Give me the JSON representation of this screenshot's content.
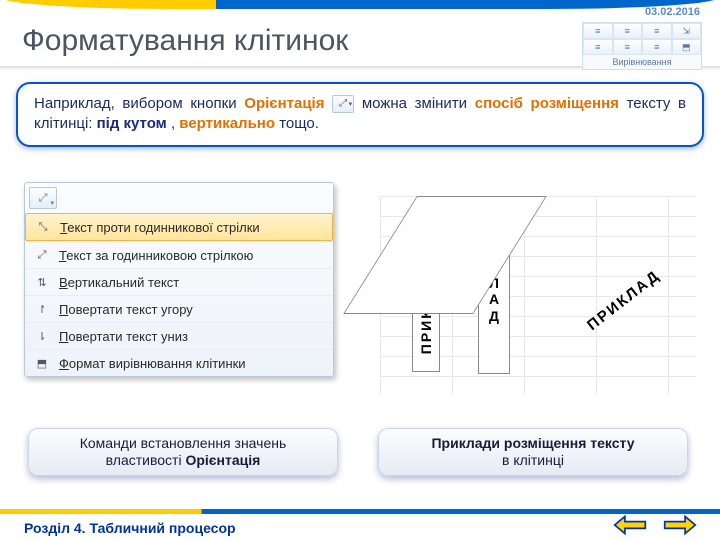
{
  "date": "03.02.2016",
  "title": "Форматування клітинок",
  "ribbon": {
    "label": "Вирівнювання",
    "icons": [
      "≡",
      "≡",
      "≡",
      "⇲",
      "≡",
      "≡",
      "≡",
      "⬒"
    ]
  },
  "desc": {
    "t1": "Наприклад, вибором кнопки ",
    "orient": "Орієнтація",
    "t2": " можна змінити ",
    "way": "спосіб розміщення",
    "t3": " тексту в клітинці: ",
    "angle": "під кутом",
    "comma": ", ",
    "vert": "вертикально",
    "t4": " тощо."
  },
  "menu": {
    "topbtn_icon": "⤢",
    "items": [
      {
        "icon": "⤡",
        "label_u": "Т",
        "label": "екст проти годинникової стрілки",
        "hl": true
      },
      {
        "icon": "⤢",
        "label_u": "Т",
        "label": "екст за годинниковою стрілкою",
        "hl": false
      },
      {
        "icon": "⇅",
        "label_u": "В",
        "label": "ертикальний текст",
        "hl": false
      },
      {
        "icon": "↾",
        "label_u": "П",
        "label": "овертати текст угору",
        "hl": false
      },
      {
        "icon": "⇂",
        "label_u": "П",
        "label": "овертати текст униз",
        "hl": false
      },
      {
        "icon": "⬒",
        "label_u": "Ф",
        "label": "ормат вирівнювання клітинки",
        "hl": false
      }
    ]
  },
  "examples": {
    "word_horiz": "ПРИКЛАД",
    "word_vert": [
      "П",
      "Р",
      "И",
      "К",
      "Л",
      "А",
      "Д"
    ],
    "word_diag": "ПРИКЛАД"
  },
  "captions": {
    "left_a": "Команди встановлення значень",
    "left_b_pre": "властивості ",
    "left_b_bold": "Орієнтація",
    "right_bold": "Приклади розміщення тексту",
    "right_b": "в клітинці"
  },
  "footer": "Розділ 4. Табличний процесор",
  "colors": {
    "nav_fill": "#ffd400",
    "nav_stroke": "#0033aa"
  }
}
